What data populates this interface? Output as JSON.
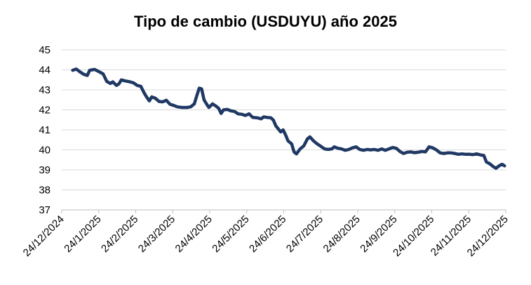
{
  "chart_data": {
    "type": "line",
    "title": "Tipo de cambio (USDUYU) año 2025",
    "xlabel": "",
    "ylabel": "",
    "ylim": [
      37,
      45
    ],
    "yticks": [
      "37",
      "38",
      "39",
      "40",
      "41",
      "42",
      "43",
      "44",
      "45"
    ],
    "xticks": [
      "24/12/2024",
      "24/1/2025",
      "24/2/2025",
      "24/3/2025",
      "24/4/2025",
      "24/5/2025",
      "24/6/2025",
      "24/7/2025",
      "24/8/2025",
      "24/9/2025",
      "24/10/2025",
      "24/11/2025",
      "24/12/2025"
    ],
    "xlim": [
      "2024-12-24",
      "2025-12-24"
    ],
    "grid": true,
    "series": [
      {
        "color": "#1f3864",
        "points": [
          [
            "2025-01-02",
            43.98
          ],
          [
            "2025-01-05",
            44.04
          ],
          [
            "2025-01-08",
            43.9
          ],
          [
            "2025-01-11",
            43.78
          ],
          [
            "2025-01-14",
            43.72
          ],
          [
            "2025-01-16",
            43.98
          ],
          [
            "2025-01-20",
            44.02
          ],
          [
            "2025-01-23",
            43.93
          ],
          [
            "2025-01-27",
            43.8
          ],
          [
            "2025-01-30",
            43.42
          ],
          [
            "2025-02-02",
            43.32
          ],
          [
            "2025-02-04",
            43.4
          ],
          [
            "2025-02-07",
            43.22
          ],
          [
            "2025-02-09",
            43.3
          ],
          [
            "2025-02-11",
            43.5
          ],
          [
            "2025-02-14",
            43.45
          ],
          [
            "2025-02-18",
            43.4
          ],
          [
            "2025-02-21",
            43.35
          ],
          [
            "2025-02-24",
            43.22
          ],
          [
            "2025-02-27",
            43.18
          ],
          [
            "2025-03-02",
            42.82
          ],
          [
            "2025-03-04",
            42.62
          ],
          [
            "2025-03-06",
            42.45
          ],
          [
            "2025-03-08",
            42.65
          ],
          [
            "2025-03-11",
            42.58
          ],
          [
            "2025-03-14",
            42.42
          ],
          [
            "2025-03-17",
            42.4
          ],
          [
            "2025-03-20",
            42.48
          ],
          [
            "2025-03-23",
            42.28
          ],
          [
            "2025-03-26",
            42.22
          ],
          [
            "2025-03-29",
            42.15
          ],
          [
            "2025-04-02",
            42.12
          ],
          [
            "2025-04-06",
            42.12
          ],
          [
            "2025-04-09",
            42.15
          ],
          [
            "2025-04-12",
            42.3
          ],
          [
            "2025-04-14",
            42.7
          ],
          [
            "2025-04-16",
            43.08
          ],
          [
            "2025-04-18",
            43.05
          ],
          [
            "2025-04-20",
            42.5
          ],
          [
            "2025-04-22",
            42.3
          ],
          [
            "2025-04-24",
            42.12
          ],
          [
            "2025-04-27",
            42.3
          ],
          [
            "2025-04-30",
            42.18
          ],
          [
            "2025-05-02",
            42.08
          ],
          [
            "2025-05-04",
            41.82
          ],
          [
            "2025-05-06",
            42.0
          ],
          [
            "2025-05-09",
            42.02
          ],
          [
            "2025-05-12",
            41.95
          ],
          [
            "2025-05-15",
            41.92
          ],
          [
            "2025-05-18",
            41.8
          ],
          [
            "2025-05-21",
            41.78
          ],
          [
            "2025-05-24",
            41.72
          ],
          [
            "2025-05-27",
            41.8
          ],
          [
            "2025-05-30",
            41.62
          ],
          [
            "2025-06-03",
            41.6
          ],
          [
            "2025-06-06",
            41.55
          ],
          [
            "2025-06-08",
            41.65
          ],
          [
            "2025-06-11",
            41.62
          ],
          [
            "2025-06-14",
            41.6
          ],
          [
            "2025-06-16",
            41.48
          ],
          [
            "2025-06-18",
            41.2
          ],
          [
            "2025-06-20",
            41.05
          ],
          [
            "2025-06-22",
            40.9
          ],
          [
            "2025-06-24",
            41.0
          ],
          [
            "2025-06-26",
            40.75
          ],
          [
            "2025-06-28",
            40.45
          ],
          [
            "2025-07-01",
            40.3
          ],
          [
            "2025-07-03",
            39.9
          ],
          [
            "2025-07-05",
            39.8
          ],
          [
            "2025-07-08",
            40.05
          ],
          [
            "2025-07-11",
            40.2
          ],
          [
            "2025-07-14",
            40.55
          ],
          [
            "2025-07-16",
            40.65
          ],
          [
            "2025-07-19",
            40.45
          ],
          [
            "2025-07-22",
            40.3
          ],
          [
            "2025-07-25",
            40.18
          ],
          [
            "2025-07-28",
            40.05
          ],
          [
            "2025-07-31",
            40.02
          ],
          [
            "2025-08-03",
            40.05
          ],
          [
            "2025-08-05",
            40.15
          ],
          [
            "2025-08-08",
            40.08
          ],
          [
            "2025-08-11",
            40.05
          ],
          [
            "2025-08-14",
            39.98
          ],
          [
            "2025-08-17",
            40.02
          ],
          [
            "2025-08-20",
            40.1
          ],
          [
            "2025-08-23",
            40.15
          ],
          [
            "2025-08-26",
            40.02
          ],
          [
            "2025-08-29",
            39.98
          ],
          [
            "2025-09-01",
            40.02
          ],
          [
            "2025-09-04",
            40.0
          ],
          [
            "2025-09-07",
            40.02
          ],
          [
            "2025-09-10",
            39.98
          ],
          [
            "2025-09-13",
            40.05
          ],
          [
            "2025-09-16",
            39.98
          ],
          [
            "2025-09-19",
            40.05
          ],
          [
            "2025-09-22",
            40.12
          ],
          [
            "2025-09-25",
            40.08
          ],
          [
            "2025-09-28",
            39.92
          ],
          [
            "2025-10-01",
            39.82
          ],
          [
            "2025-10-04",
            39.88
          ],
          [
            "2025-10-07",
            39.9
          ],
          [
            "2025-10-10",
            39.86
          ],
          [
            "2025-10-13",
            39.88
          ],
          [
            "2025-10-16",
            39.92
          ],
          [
            "2025-10-19",
            39.9
          ],
          [
            "2025-10-22",
            40.15
          ],
          [
            "2025-10-25",
            40.1
          ],
          [
            "2025-10-28",
            40.0
          ],
          [
            "2025-10-31",
            39.85
          ],
          [
            "2025-11-03",
            39.82
          ],
          [
            "2025-11-06",
            39.85
          ],
          [
            "2025-11-09",
            39.85
          ],
          [
            "2025-11-12",
            39.82
          ],
          [
            "2025-11-15",
            39.78
          ],
          [
            "2025-11-18",
            39.8
          ],
          [
            "2025-11-21",
            39.78
          ],
          [
            "2025-11-24",
            39.78
          ],
          [
            "2025-11-27",
            39.76
          ],
          [
            "2025-11-30",
            39.8
          ],
          [
            "2025-12-03",
            39.75
          ],
          [
            "2025-12-06",
            39.72
          ],
          [
            "2025-12-08",
            39.4
          ],
          [
            "2025-12-11",
            39.3
          ],
          [
            "2025-12-14",
            39.15
          ],
          [
            "2025-12-16",
            39.08
          ],
          [
            "2025-12-19",
            39.22
          ],
          [
            "2025-12-21",
            39.28
          ],
          [
            "2025-12-23",
            39.2
          ]
        ]
      }
    ]
  }
}
